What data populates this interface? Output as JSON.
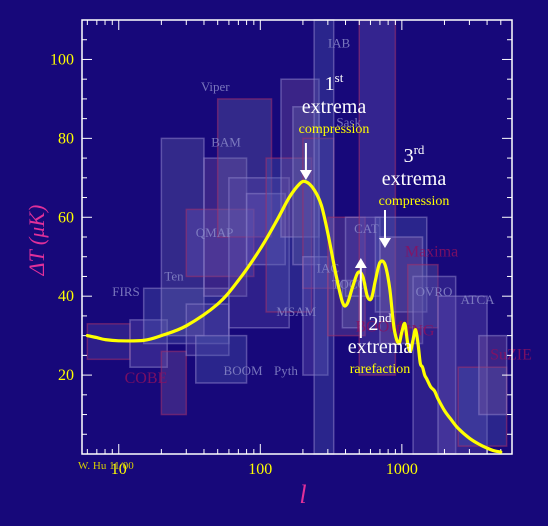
{
  "chart_data": {
    "type": "line",
    "ylabel": "ΔT (μK)",
    "xlabel": "l",
    "x_scale": "log",
    "xlim": [
      5.5,
      6000
    ],
    "ylim": [
      0,
      110
    ],
    "x_ticks": [
      10,
      100,
      1000
    ],
    "x_tick_labels": [
      "10",
      "100",
      "1000"
    ],
    "y_ticks": [
      20,
      40,
      60,
      80,
      100
    ],
    "y_tick_labels": [
      "20",
      "40",
      "60",
      "80",
      "100"
    ],
    "credit": "W. Hu 11/00",
    "colors": {
      "background": "#17087a",
      "curve": "#ffff00",
      "ylabel": "#e0309a",
      "xlabel": "#e0309a",
      "ticks": "#ffff00",
      "annotation": "#ffffff",
      "annotation_sub": "#ffff00"
    },
    "series": [
      {
        "name": "",
        "x": [
          6,
          7,
          8,
          10,
          15,
          20,
          30,
          50,
          70,
          100,
          130,
          160,
          190,
          210,
          240,
          270,
          300,
          340,
          380,
          410,
          450,
          490,
          530,
          570,
          610,
          650,
          700,
          760,
          820,
          880,
          950,
          1000,
          1050,
          1100,
          1150,
          1200,
          1250,
          1300,
          1350,
          1400,
          1450,
          1500,
          1600,
          1700,
          1800,
          2000,
          2200,
          2500,
          3000,
          3500,
          4000,
          4500,
          5000
        ],
        "y": [
          30,
          29.5,
          29,
          28.7,
          28.8,
          30,
          32.5,
          38,
          44,
          52,
          59,
          65,
          68.5,
          69,
          67,
          63,
          56,
          46,
          38.5,
          38,
          42.5,
          46,
          45,
          40,
          39.5,
          44,
          48.5,
          48,
          42,
          32,
          28,
          31,
          33,
          28,
          26,
          29,
          31.5,
          28,
          23,
          22,
          20,
          19,
          17,
          16,
          14,
          11,
          9,
          6.5,
          4,
          2.5,
          1.5,
          0.8,
          0.5
        ]
      }
    ],
    "annotations": [
      {
        "n": "1",
        "sup": "st",
        "word": "extrema",
        "sub": "compression",
        "x": 210,
        "y": 69
      },
      {
        "n": "3",
        "sup": "rd",
        "word": "extrema",
        "sub": "compression",
        "x": 760,
        "y": 49
      },
      {
        "n": "2",
        "sup": "nd",
        "word": "extrema",
        "sub": "rarefaction",
        "x": 530,
        "y": 38
      }
    ],
    "experiment_labels": [
      "IAB",
      "Sask",
      "Viper",
      "BAM",
      "QMAP",
      "Ten",
      "FIRS",
      "COBE",
      "BOOM",
      "Pyth",
      "CAT",
      "Maxima",
      "OVRO",
      "ATCA",
      "BOOM",
      "IAC",
      "SuZIE",
      "MSAM",
      "RING",
      "TOCO"
    ],
    "experiment_boxes": [
      {
        "x": [
          6,
          12
        ],
        "y": [
          24,
          33
        ]
      },
      {
        "x": [
          12,
          22
        ],
        "y": [
          22,
          34
        ]
      },
      {
        "x": [
          15,
          60
        ],
        "y": [
          28,
          42
        ]
      },
      {
        "x": [
          20,
          30
        ],
        "y": [
          10,
          26
        ]
      },
      {
        "x": [
          20,
          40
        ],
        "y": [
          30,
          80
        ]
      },
      {
        "x": [
          30,
          60
        ],
        "y": [
          25,
          38
        ]
      },
      {
        "x": [
          30,
          90
        ],
        "y": [
          45,
          62
        ]
      },
      {
        "x": [
          35,
          80
        ],
        "y": [
          18,
          30
        ]
      },
      {
        "x": [
          40,
          80
        ],
        "y": [
          40,
          75
        ]
      },
      {
        "x": [
          50,
          120
        ],
        "y": [
          55,
          90
        ]
      },
      {
        "x": [
          60,
          160
        ],
        "y": [
          32,
          70
        ]
      },
      {
        "x": [
          80,
          150
        ],
        "y": [
          48,
          66
        ]
      },
      {
        "x": [
          110,
          230
        ],
        "y": [
          36,
          75
        ]
      },
      {
        "x": [
          140,
          260
        ],
        "y": [
          55,
          95
        ]
      },
      {
        "x": [
          170,
          260
        ],
        "y": [
          48,
          88
        ]
      },
      {
        "x": [
          200,
          330
        ],
        "y": [
          42,
          80
        ]
      },
      {
        "x": [
          200,
          300
        ],
        "y": [
          20,
          50
        ]
      },
      {
        "x": [
          240,
          330
        ],
        "y": [
          0,
          110
        ]
      },
      {
        "x": [
          300,
          550
        ],
        "y": [
          30,
          60
        ]
      },
      {
        "x": [
          380,
          500
        ],
        "y": [
          32,
          44
        ]
      },
      {
        "x": [
          400,
          700
        ],
        "y": [
          40,
          60
        ]
      },
      {
        "x": [
          500,
          900
        ],
        "y": [
          20,
          110
        ]
      },
      {
        "x": [
          650,
          1500
        ],
        "y": [
          36,
          60
        ]
      },
      {
        "x": [
          700,
          1400
        ],
        "y": [
          28,
          55
        ]
      },
      {
        "x": [
          1100,
          1800
        ],
        "y": [
          32,
          48
        ]
      },
      {
        "x": [
          1200,
          2400
        ],
        "y": [
          0,
          45
        ]
      },
      {
        "x": [
          1800,
          4000
        ],
        "y": [
          0,
          40
        ]
      },
      {
        "x": [
          2500,
          5500
        ],
        "y": [
          2,
          22
        ]
      },
      {
        "x": [
          3500,
          5500
        ],
        "y": [
          10,
          30
        ]
      }
    ]
  }
}
